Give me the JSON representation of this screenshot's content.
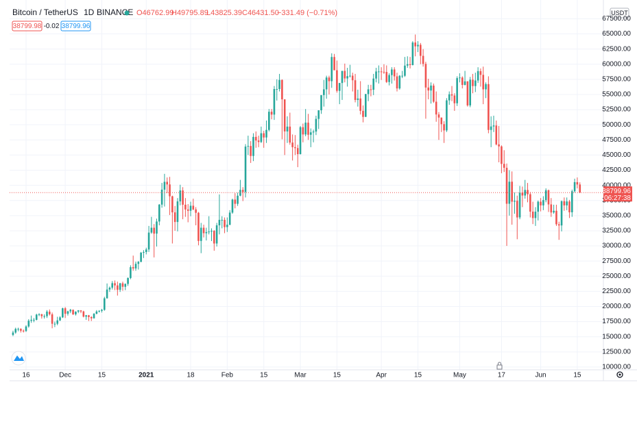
{
  "chart_data": {
    "type": "candlestick",
    "symbol": "Bitcoin / TetherUS",
    "interval": "1D",
    "exchange": "BINANCE",
    "ohlc": [
      "O46762.99",
      "H49795.89",
      "L43825.39",
      "C46431.50"
    ],
    "change": "−331.49 (−0.71%)",
    "bid": "38799.98",
    "spread": "-0.02",
    "ask": "38799.96",
    "currency": "USDT",
    "last_price": 38799.96,
    "countdown": "06:27:38",
    "up_color": "#26a69a",
    "down_color": "#ef5350",
    "grid": true,
    "xlim": [
      -1.3,
      226
    ],
    "ylim": [
      9540,
      70600
    ],
    "xticks": [
      {
        "value": 5,
        "label": "16"
      },
      {
        "value": 20,
        "label": "Dec"
      },
      {
        "value": 34,
        "label": "15"
      },
      {
        "value": 51,
        "label": "2021"
      },
      {
        "value": 68,
        "label": "18"
      },
      {
        "value": 82,
        "label": "Feb"
      },
      {
        "value": 96,
        "label": "15"
      },
      {
        "value": 110,
        "label": "Mar"
      },
      {
        "value": 124,
        "label": "15"
      },
      {
        "value": 141,
        "label": "Apr"
      },
      {
        "value": 155,
        "label": "15"
      },
      {
        "value": 171,
        "label": "May"
      },
      {
        "value": 187,
        "label": "17"
      },
      {
        "value": 202,
        "label": "Jun"
      },
      {
        "value": 216,
        "label": "15"
      }
    ],
    "yticks": [
      {
        "value": 10000,
        "label": "10000.00"
      },
      {
        "value": 12500,
        "label": "12500.00"
      },
      {
        "value": 15000,
        "label": "15000.00"
      },
      {
        "value": 17500,
        "label": "17500.00"
      },
      {
        "value": 20000,
        "label": "20000.00"
      },
      {
        "value": 22500,
        "label": "22500.00"
      },
      {
        "value": 25000,
        "label": "25000.00"
      },
      {
        "value": 27500,
        "label": "27500.00"
      },
      {
        "value": 30000,
        "label": "30000.00"
      },
      {
        "value": 32500,
        "label": "32500.00"
      },
      {
        "value": 35000,
        "label": "35000.00"
      },
      {
        "value": 37500,
        "label": "37500.00"
      },
      {
        "value": 40000,
        "label": "40000.00"
      },
      {
        "value": 42500,
        "label": "42500.00"
      },
      {
        "value": 45000,
        "label": "45000.00"
      },
      {
        "value": 47500,
        "label": "47500.00"
      },
      {
        "value": 50000,
        "label": "50000.00"
      },
      {
        "value": 52500,
        "label": "52500.00"
      },
      {
        "value": 55000,
        "label": "55000.00"
      },
      {
        "value": 57500,
        "label": "57500.00"
      },
      {
        "value": 60000,
        "label": "60000.00"
      },
      {
        "value": 62500,
        "label": "62500.00"
      },
      {
        "value": 65000,
        "label": "65000.00"
      },
      {
        "value": 67500,
        "label": "67500.00"
      }
    ],
    "candles": {
      "open": [
        15300,
        15700,
        16300,
        16300,
        16000,
        15950,
        16700,
        17650,
        17800,
        17800,
        18650,
        18700,
        18400,
        18400,
        19150,
        18700,
        17150,
        17150,
        17700,
        18200,
        19700,
        18800,
        19200,
        19450,
        18700,
        19150,
        19350,
        19180,
        18320,
        18550,
        18250,
        18050,
        18800,
        19170,
        19270,
        19440,
        21350,
        22800,
        23100,
        23850,
        23480,
        22750,
        23820,
        23250,
        23730,
        24700,
        26490,
        26280,
        27040,
        27370,
        28880,
        28990,
        29410,
        32200,
        33000,
        32030,
        34030,
        36820,
        39290,
        40580,
        40150,
        38190,
        35540,
        33950,
        37350,
        39150,
        36800,
        36020,
        35800,
        36630,
        36020,
        35470,
        30820,
        33000,
        32100,
        32280,
        32370,
        32500,
        30400,
        33400,
        34300,
        34300,
        33100,
        33500,
        35500,
        37650,
        36950,
        38290,
        39250,
        38900,
        46400,
        46500,
        44850,
        48000,
        47400,
        47150,
        48600,
        47900,
        49150,
        52150,
        51680,
        55900,
        55900,
        57400,
        54200,
        48900,
        49700,
        47060,
        46300,
        46150,
        45150,
        49600,
        48400,
        50350,
        48350,
        48750,
        48880,
        50970,
        52390,
        54900,
        55850,
        57800,
        57200,
        61190,
        59000,
        55600,
        56900,
        58900,
        57650,
        58030,
        58100,
        57350,
        54100,
        54340,
        52300,
        51300,
        55070,
        55850,
        55780,
        57630,
        58800,
        58800,
        58740,
        58720,
        57060,
        58200,
        59130,
        57990,
        56000,
        58090,
        58090,
        59770,
        60000,
        59860,
        63580,
        62950,
        63200,
        61380,
        60050,
        56150,
        55660,
        56470,
        53810,
        51700,
        51190,
        50100,
        49070,
        54030,
        55030,
        54830,
        53550,
        57700,
        57800,
        56580,
        57170,
        53200,
        57440,
        56390,
        57310,
        58860,
        58240,
        55850,
        56710,
        49150,
        49720,
        49880,
        46760,
        46430,
        43540,
        42900,
        36960,
        40600,
        37300,
        37450,
        34700,
        38800,
        38320,
        39240,
        38530,
        35660,
        34600,
        35650,
        37300,
        36690,
        37560,
        39190,
        36850,
        35520,
        35800,
        33570,
        33380,
        37380,
        36690,
        37340,
        35550,
        39020,
        40530,
        40140
      ],
      "high": [
        16000,
        16500,
        16500,
        16400,
        16200,
        16900,
        17900,
        18500,
        18100,
        18800,
        18900,
        18800,
        18700,
        19400,
        19500,
        19000,
        17500,
        18300,
        18400,
        19800,
        19900,
        19300,
        19600,
        19500,
        19200,
        19400,
        19400,
        19300,
        18600,
        18600,
        18400,
        18900,
        19400,
        19400,
        19600,
        21600,
        23800,
        23300,
        24200,
        24300,
        24100,
        23900,
        24100,
        23800,
        24800,
        26800,
        28400,
        27400,
        27500,
        29000,
        29300,
        29700,
        33300,
        34800,
        33600,
        34500,
        36900,
        40400,
        41900,
        41300,
        41400,
        38300,
        36600,
        37900,
        40100,
        39700,
        37900,
        36900,
        37300,
        37800,
        36400,
        35600,
        33800,
        33500,
        33000,
        34900,
        32900,
        32600,
        33800,
        38500,
        34900,
        34700,
        34700,
        35900,
        37800,
        38700,
        38800,
        40900,
        39700,
        46800,
        48200,
        47300,
        48600,
        48900,
        48200,
        49700,
        49000,
        50700,
        52600,
        52600,
        56400,
        57500,
        58400,
        57500,
        54200,
        51400,
        52000,
        48400,
        48300,
        46700,
        49800,
        50200,
        52600,
        51800,
        49400,
        49200,
        51500,
        52400,
        54900,
        57400,
        58100,
        58100,
        61800,
        61700,
        60600,
        56900,
        58900,
        60100,
        59400,
        59900,
        58600,
        58400,
        55800,
        57200,
        53200,
        55100,
        56600,
        56600,
        58400,
        59400,
        59800,
        59500,
        60000,
        59800,
        58500,
        59500,
        59500,
        58600,
        58200,
        58900,
        61200,
        61300,
        61200,
        63800,
        64900,
        63800,
        63500,
        62500,
        60400,
        57600,
        57000,
        56800,
        55500,
        52100,
        51200,
        50600,
        54400,
        55500,
        56400,
        55200,
        58000,
        58500,
        58000,
        58900,
        57200,
        57900,
        58400,
        58600,
        59500,
        59300,
        59600,
        57000,
        58000,
        51400,
        51500,
        50700,
        49800,
        46600,
        45800,
        43600,
        42500,
        42300,
        38800,
        38300,
        39900,
        39800,
        40900,
        40400,
        38900,
        37300,
        36400,
        37500,
        37900,
        38200,
        39500,
        39300,
        37900,
        36800,
        36800,
        34000,
        37500,
        38000,
        38000,
        37600,
        39300,
        41100,
        41300,
        40500
      ],
      "low": [
        15100,
        15500,
        15900,
        15700,
        15700,
        15800,
        16500,
        17300,
        17400,
        17700,
        18400,
        18000,
        18000,
        18100,
        18500,
        16400,
        16600,
        16900,
        17600,
        18100,
        18100,
        18500,
        18900,
        18600,
        18500,
        18900,
        18900,
        18200,
        17800,
        17600,
        17600,
        18000,
        18700,
        19000,
        19000,
        19300,
        21300,
        22400,
        22800,
        22700,
        21800,
        22400,
        22600,
        22700,
        23400,
        24500,
        25900,
        25900,
        26100,
        27300,
        28000,
        28600,
        29000,
        32000,
        28100,
        29900,
        33400,
        36300,
        36500,
        38700,
        35100,
        30400,
        32500,
        32400,
        36700,
        34400,
        34800,
        33900,
        34900,
        35900,
        33400,
        30100,
        28800,
        31400,
        30900,
        31900,
        30800,
        29200,
        29900,
        31900,
        32900,
        32100,
        32300,
        33400,
        35300,
        36200,
        36600,
        38200,
        37400,
        38000,
        45000,
        43700,
        44000,
        46200,
        46300,
        47000,
        46200,
        47000,
        48900,
        50900,
        50800,
        54000,
        55500,
        47600,
        45000,
        47000,
        46700,
        44100,
        45000,
        43000,
        45100,
        47100,
        48100,
        47500,
        46300,
        47100,
        48300,
        49300,
        51800,
        53000,
        54300,
        55000,
        56100,
        59000,
        55300,
        53400,
        54100,
        57000,
        56300,
        57800,
        55500,
        53700,
        53000,
        51700,
        50400,
        51300,
        53900,
        54700,
        54900,
        57000,
        56800,
        57400,
        58400,
        56900,
        56500,
        56800,
        57300,
        55500,
        55800,
        57700,
        57900,
        59400,
        59300,
        59800,
        61300,
        62000,
        60000,
        59600,
        51000,
        54200,
        53500,
        53600,
        50500,
        47500,
        48800,
        47000,
        48800,
        53300,
        53900,
        52300,
        53100,
        57000,
        56000,
        56500,
        53000,
        52900,
        55200,
        55400,
        56900,
        56300,
        53400,
        54400,
        48600,
        46300,
        48800,
        46600,
        43800,
        42000,
        42200,
        30000,
        35000,
        33500,
        35300,
        31100,
        34400,
        36400,
        37800,
        37200,
        34700,
        33600,
        33300,
        34200,
        35700,
        35900,
        37200,
        35600,
        34800,
        35300,
        33300,
        31000,
        32400,
        35800,
        35900,
        34600,
        34800,
        38800,
        39500,
        38700
      ],
      "close": [
        15700,
        16300,
        16300,
        16000,
        15950,
        16700,
        17650,
        17800,
        17800,
        18650,
        18700,
        18400,
        18400,
        19150,
        18700,
        17150,
        17150,
        17700,
        18200,
        19700,
        18800,
        19200,
        19450,
        18700,
        19150,
        19350,
        19180,
        18320,
        18550,
        18250,
        18050,
        18800,
        19170,
        19270,
        19440,
        21350,
        22800,
        23100,
        23850,
        23480,
        22750,
        23820,
        23250,
        23730,
        24700,
        26490,
        26280,
        27040,
        27370,
        28880,
        28990,
        29410,
        32200,
        33000,
        32030,
        34030,
        36820,
        39290,
        40580,
        40150,
        38190,
        35540,
        33950,
        37350,
        39150,
        36800,
        36020,
        35800,
        36630,
        36020,
        35470,
        30820,
        33000,
        32100,
        32280,
        32370,
        32500,
        30400,
        33400,
        34300,
        34300,
        33100,
        33500,
        35500,
        37650,
        36950,
        38290,
        39250,
        38900,
        46400,
        46500,
        44850,
        48000,
        47400,
        47150,
        48600,
        47900,
        49150,
        52150,
        51680,
        55900,
        55900,
        57400,
        54200,
        48900,
        49700,
        47060,
        46300,
        46150,
        45150,
        49600,
        48400,
        50350,
        48350,
        48750,
        48880,
        50970,
        52390,
        54900,
        55850,
        57800,
        57200,
        61190,
        59000,
        55600,
        56900,
        58900,
        57650,
        58030,
        58100,
        57350,
        54100,
        54340,
        52300,
        51300,
        55070,
        55850,
        55780,
        57630,
        58800,
        58800,
        58740,
        58720,
        57060,
        58200,
        59130,
        57990,
        56000,
        58090,
        58090,
        59770,
        60000,
        59860,
        63580,
        62950,
        63200,
        61380,
        60050,
        56150,
        55660,
        56470,
        53810,
        51700,
        51190,
        50100,
        49070,
        54030,
        55030,
        54830,
        53550,
        57700,
        57800,
        56580,
        57170,
        53200,
        57440,
        56390,
        57310,
        58860,
        58240,
        55850,
        56710,
        49150,
        49720,
        49880,
        46760,
        46430,
        43540,
        42900,
        36960,
        40600,
        37300,
        37450,
        34700,
        38800,
        38320,
        39240,
        38530,
        35660,
        34600,
        35650,
        37300,
        36690,
        37560,
        39190,
        36850,
        35520,
        35800,
        33570,
        33380,
        37380,
        36690,
        37340,
        35550,
        39020,
        40530,
        40140,
        38800
      ]
    }
  }
}
